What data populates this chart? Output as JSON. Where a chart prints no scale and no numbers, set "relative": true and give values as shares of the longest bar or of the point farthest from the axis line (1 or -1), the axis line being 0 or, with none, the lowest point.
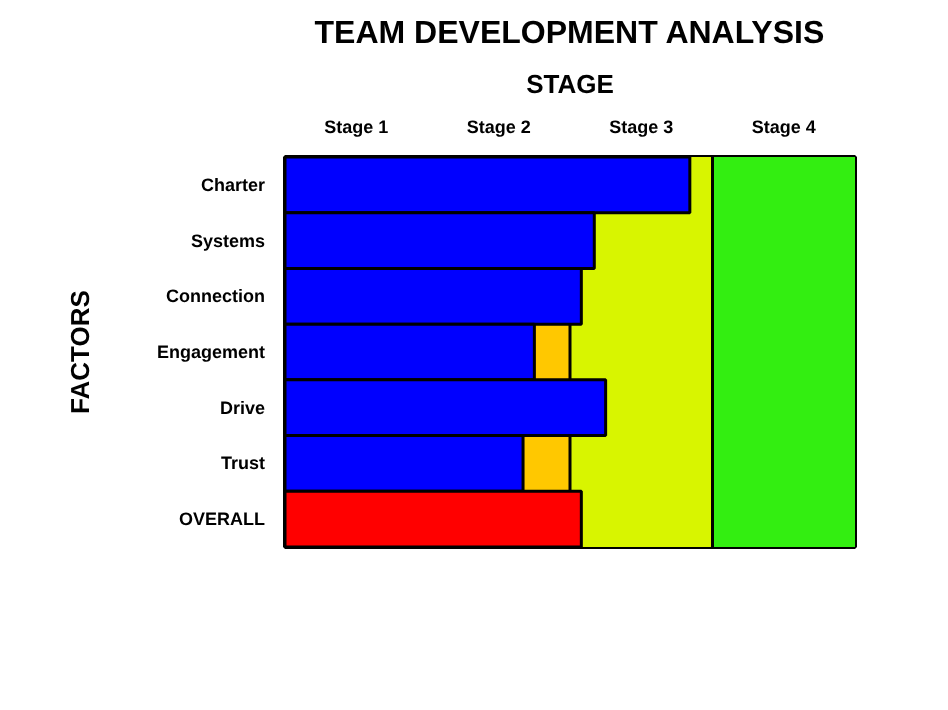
{
  "chart_data": {
    "type": "bar",
    "orientation": "horizontal",
    "relative": true,
    "title": "TEAM DEVELOPMENT ANALYSIS",
    "xlabel": "STAGE",
    "ylabel": "FACTORS",
    "categories": [
      "Charter",
      "Systems",
      "Connection",
      "Engagement",
      "Drive",
      "Trust",
      "OVERALL"
    ],
    "values": [
      1,
      0.764,
      0.732,
      0.616,
      0.792,
      0.588,
      0.732
    ],
    "colors": [
      "#0000ff",
      "#0000ff",
      "#0000ff",
      "#0000ff",
      "#0000ff",
      "#0000ff",
      "#ff0000"
    ],
    "annotations": [
      "Stage 1",
      "Stage 2",
      "Stage 3",
      "Stage 4"
    ],
    "bands": [
      {
        "axis": "x",
        "from": 0.528,
        "to": 0.704,
        "color": "#ffc800"
      },
      {
        "axis": "x",
        "from": 0.704,
        "to": 1.056,
        "color": "#d8f500"
      },
      {
        "axis": "x",
        "from": 1.056,
        "to": 1.408,
        "color": "#33ee11"
      }
    ],
    "ref_lines": [
      {
        "axis": "x",
        "value": 0.704,
        "color": "#000000"
      },
      {
        "axis": "x",
        "value": 1.056,
        "color": "#000000"
      }
    ]
  }
}
